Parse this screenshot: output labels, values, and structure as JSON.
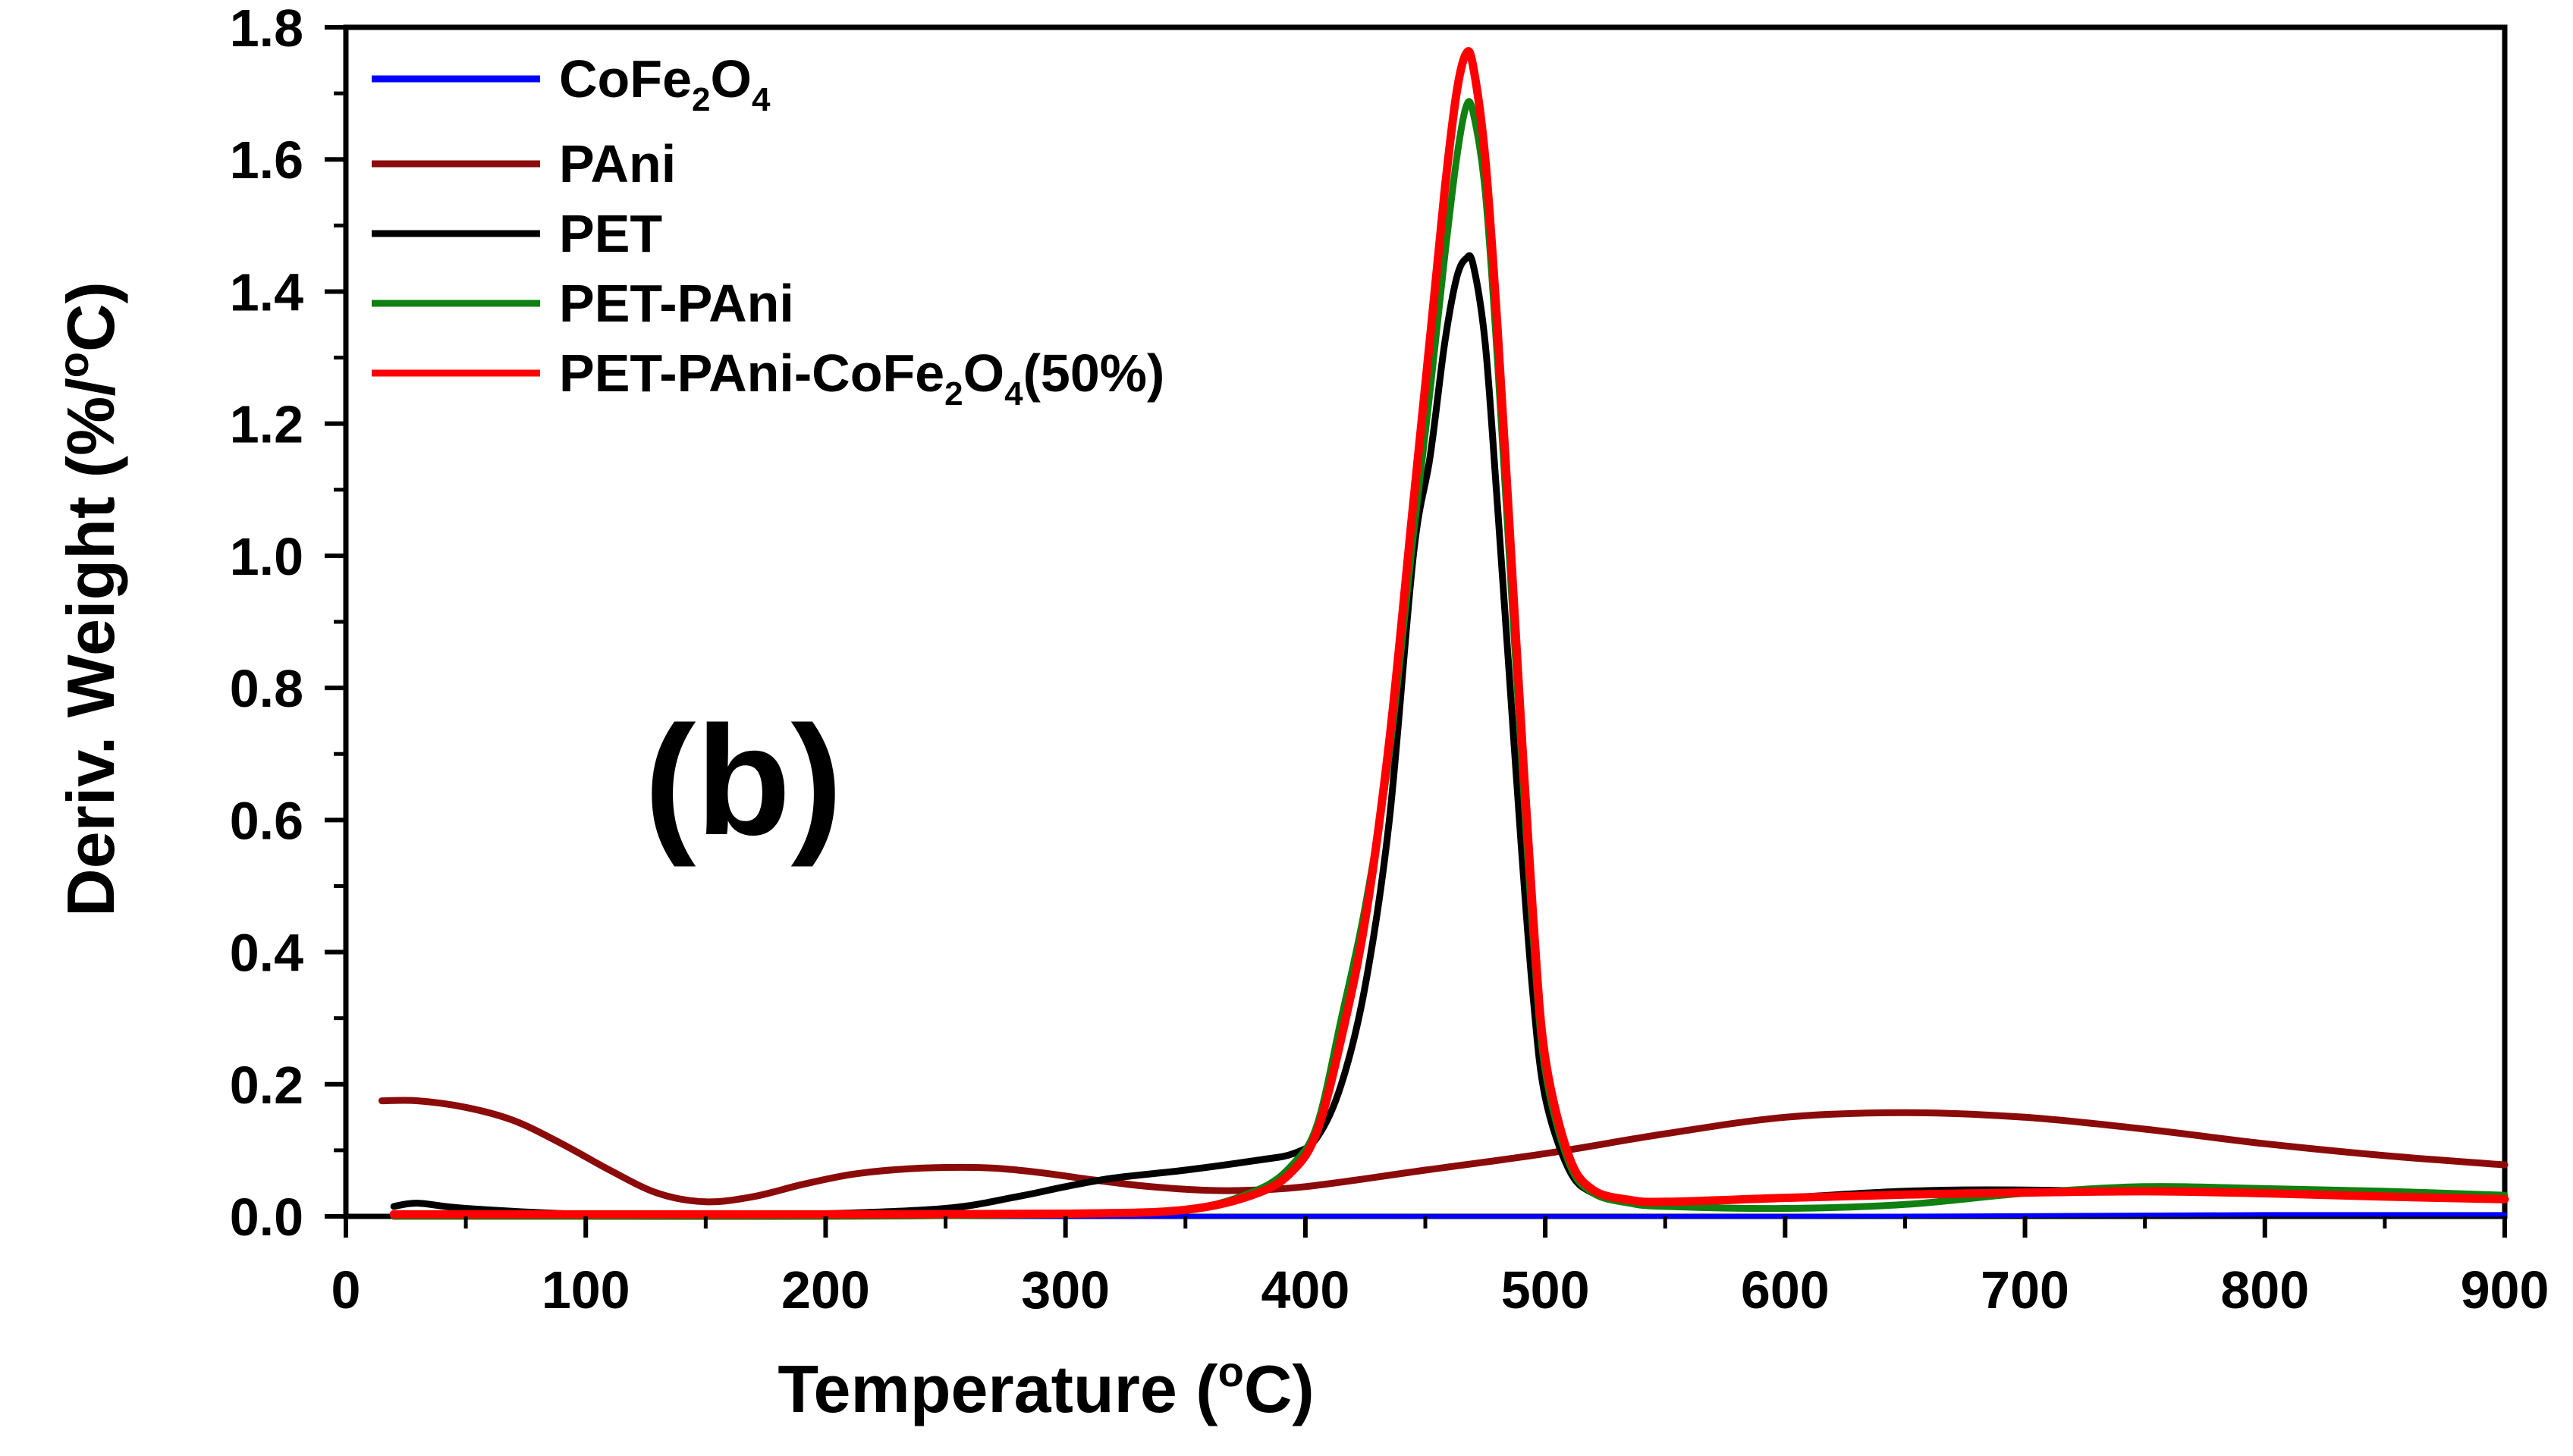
{
  "chart_data": {
    "type": "line",
    "panel_label": "(b)",
    "xlabel": "Temperature (",
    "xlabel_sup": "o",
    "xlabel_end": "C)",
    "ylabel": "Deriv. Weight (%/",
    "ylabel_sup": "o",
    "ylabel_end": "C)",
    "xlim": [
      0,
      900
    ],
    "ylim": [
      0,
      1.8
    ],
    "x_ticks": [
      "0",
      "100",
      "200",
      "300",
      "400",
      "500",
      "600",
      "700",
      "800",
      "900"
    ],
    "y_ticks": [
      "0.0",
      "0.2",
      "0.4",
      "0.6",
      "0.8",
      "1.0",
      "1.2",
      "1.4",
      "1.6",
      "1.8"
    ],
    "legend_position": "top-left",
    "legend": [
      {
        "main": "CoFe",
        "sub1": "2",
        "mid": "O",
        "sub2": "4",
        "tail": ""
      },
      {
        "main": "PAni",
        "sub1": "",
        "mid": "",
        "sub2": "",
        "tail": ""
      },
      {
        "main": "PET",
        "sub1": "",
        "mid": "",
        "sub2": "",
        "tail": ""
      },
      {
        "main": "PET-PAni",
        "sub1": "",
        "mid": "",
        "sub2": "",
        "tail": ""
      },
      {
        "main": "PET-PAni-CoFe",
        "sub1": "2",
        "mid": "O",
        "sub2": "4",
        "tail": "(50%)"
      }
    ],
    "series": [
      {
        "name": "CoFe2O4",
        "color": "#0000ff",
        "x": [
          20,
          200,
          400,
          600,
          800,
          900
        ],
        "y": [
          0.0,
          0.0,
          0.0,
          0.0,
          0.003,
          0.003
        ]
      },
      {
        "name": "PAni",
        "color": "#8b0a0a",
        "x": [
          15,
          30,
          50,
          70,
          90,
          110,
          130,
          150,
          170,
          190,
          210,
          230,
          250,
          270,
          290,
          310,
          330,
          350,
          370,
          400,
          450,
          500,
          550,
          600,
          650,
          700,
          750,
          800,
          850,
          900
        ],
        "y": [
          0.175,
          0.175,
          0.165,
          0.145,
          0.11,
          0.07,
          0.035,
          0.022,
          0.03,
          0.048,
          0.063,
          0.071,
          0.074,
          0.073,
          0.066,
          0.056,
          0.047,
          0.041,
          0.039,
          0.045,
          0.07,
          0.095,
          0.125,
          0.15,
          0.157,
          0.15,
          0.132,
          0.11,
          0.092,
          0.078
        ]
      },
      {
        "name": "PET",
        "color": "#000000",
        "x": [
          20,
          30,
          50,
          100,
          150,
          200,
          250,
          280,
          300,
          320,
          350,
          380,
          395,
          405,
          415,
          425,
          435,
          445,
          452,
          458,
          463,
          467,
          470,
          475,
          480,
          485,
          490,
          495,
          500,
          510,
          520,
          535,
          550,
          600,
          650,
          700,
          800,
          900
        ],
        "y": [
          0.015,
          0.02,
          0.012,
          0.003,
          0.002,
          0.004,
          0.012,
          0.03,
          0.045,
          0.058,
          0.07,
          0.085,
          0.095,
          0.12,
          0.2,
          0.35,
          0.6,
          1.0,
          1.15,
          1.32,
          1.42,
          1.45,
          1.44,
          1.32,
          1.08,
          0.82,
          0.56,
          0.33,
          0.18,
          0.07,
          0.035,
          0.022,
          0.02,
          0.028,
          0.038,
          0.04,
          0.035,
          0.028
        ]
      },
      {
        "name": "PET-PAni",
        "color": "#108010",
        "x": [
          20,
          100,
          200,
          300,
          350,
          380,
          395,
          405,
          415,
          425,
          435,
          445,
          452,
          458,
          463,
          467,
          470,
          475,
          480,
          485,
          490,
          495,
          500,
          510,
          520,
          535,
          550,
          600,
          650,
          700,
          750,
          800,
          850,
          900
        ],
        "y": [
          0.0,
          0.0,
          0.0,
          0.003,
          0.01,
          0.04,
          0.08,
          0.14,
          0.3,
          0.47,
          0.7,
          1.03,
          1.25,
          1.45,
          1.6,
          1.68,
          1.67,
          1.55,
          1.3,
          1.0,
          0.7,
          0.42,
          0.22,
          0.08,
          0.035,
          0.02,
          0.015,
          0.012,
          0.018,
          0.035,
          0.045,
          0.042,
          0.038,
          0.032
        ]
      },
      {
        "name": "PET-PAni-CoFe2O4(50%)",
        "color": "#ff0000",
        "x": [
          20,
          100,
          200,
          300,
          350,
          380,
          395,
          405,
          415,
          425,
          435,
          445,
          452,
          458,
          463,
          467,
          470,
          475,
          480,
          485,
          490,
          495,
          500,
          510,
          520,
          535,
          550,
          600,
          650,
          700,
          750,
          800,
          850,
          900
        ],
        "y": [
          0.003,
          0.003,
          0.003,
          0.004,
          0.01,
          0.035,
          0.07,
          0.13,
          0.27,
          0.45,
          0.72,
          1.08,
          1.33,
          1.55,
          1.7,
          1.76,
          1.74,
          1.6,
          1.35,
          1.05,
          0.74,
          0.45,
          0.24,
          0.09,
          0.04,
          0.025,
          0.022,
          0.028,
          0.033,
          0.036,
          0.038,
          0.035,
          0.03,
          0.026
        ]
      }
    ]
  }
}
